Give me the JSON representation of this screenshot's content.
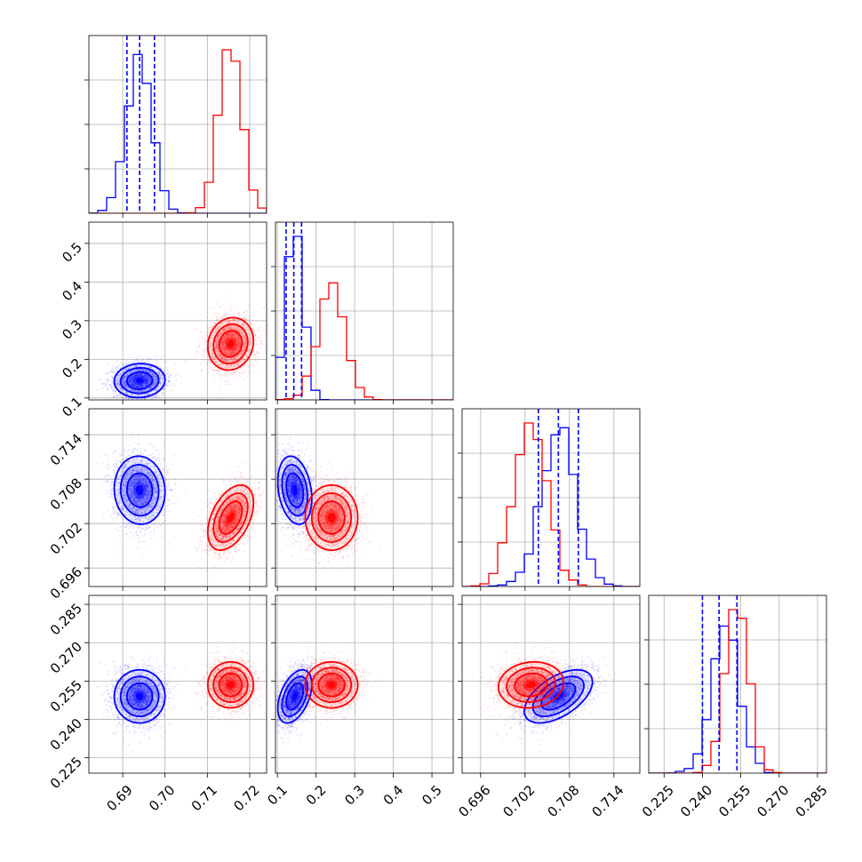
{
  "chart_data": {
    "type": "corner",
    "grid": true,
    "series": [
      {
        "color": "#0000ff",
        "mean": [
          0.694,
          0.145,
          0.7065,
          0.249
        ],
        "std": [
          0.003,
          0.022,
          0.0023,
          0.0052
        ],
        "corr": [
          [
            1,
            0.05,
            -0.05,
            0.0
          ],
          [
            0.05,
            1,
            -0.25,
            0.45
          ],
          [
            -0.05,
            -0.25,
            1,
            0.55
          ],
          [
            0.0,
            0.45,
            0.55,
            1
          ]
        ]
      },
      {
        "color": "#ff0000",
        "mean": [
          0.7155,
          0.24,
          0.7028,
          0.2535
        ],
        "std": [
          0.0027,
          0.034,
          0.0022,
          0.0045
        ],
        "corr": [
          [
            1,
            0.1,
            0.45,
            0.0
          ],
          [
            0.1,
            1,
            0.0,
            0.0
          ],
          [
            0.45,
            0.0,
            1,
            0.1
          ],
          [
            0.0,
            0.0,
            0.1,
            1
          ]
        ]
      }
    ],
    "quantile_lines": {
      "color": "#0000ff",
      "lines": [
        [
          0.691,
          0.694,
          0.6975
        ],
        [
          0.1225,
          0.1425,
          0.1625
        ],
        [
          0.7038,
          0.7065,
          0.7092
        ],
        [
          0.24,
          0.2465,
          0.2535
        ]
      ]
    },
    "ranges": [
      [
        0.682,
        0.724
      ],
      [
        0.095,
        0.555
      ],
      [
        0.6935,
        0.7175
      ],
      [
        0.219,
        0.2885
      ]
    ],
    "ticks": [
      [
        0.69,
        0.7,
        0.71,
        0.72
      ],
      [
        0.1,
        0.2,
        0.3,
        0.4,
        0.5
      ],
      [
        0.696,
        0.702,
        0.708,
        0.714
      ],
      [
        0.225,
        0.24,
        0.255,
        0.27,
        0.285
      ]
    ],
    "tick_labels": [
      [
        "0.69",
        "0.70",
        "0.71",
        "0.72"
      ],
      [
        "0.1",
        "0.2",
        "0.3",
        "0.4",
        "0.5"
      ],
      [
        "0.696",
        "0.702",
        "0.708",
        "0.714"
      ],
      [
        "0.225",
        "0.240",
        "0.255",
        "0.270",
        "0.285"
      ]
    ]
  }
}
